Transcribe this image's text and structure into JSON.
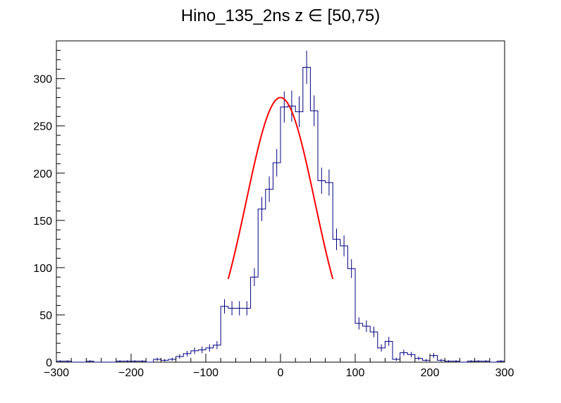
{
  "chart_data": {
    "type": "histogram",
    "title": "Hino_135_2ns z  ∈ [50,75)",
    "xlabel": "",
    "ylabel": "",
    "xlim": [
      -300,
      300
    ],
    "ylim": [
      0,
      340
    ],
    "x_ticks": [
      -300,
      -200,
      -100,
      0,
      100,
      200,
      300
    ],
    "x_tick_labels": [
      "−300",
      "−200",
      "−100",
      "0",
      "100",
      "200",
      "300"
    ],
    "y_ticks": [
      0,
      50,
      100,
      150,
      200,
      250,
      300
    ],
    "y_tick_labels": [
      "0",
      "50",
      "100",
      "150",
      "200",
      "250",
      "300"
    ],
    "grid": false,
    "bin_width": 10,
    "bin_edges_start": -300,
    "counts": [
      1,
      1,
      0,
      0,
      1,
      0,
      0,
      0,
      1,
      1,
      1,
      1,
      0,
      3,
      2,
      3,
      6,
      9,
      12,
      13,
      15,
      18,
      59,
      57,
      57,
      57,
      90,
      162,
      183,
      211,
      270,
      271,
      265,
      312,
      266,
      192,
      190,
      130,
      123,
      99,
      41,
      38,
      32,
      15,
      22,
      3,
      10,
      8,
      4,
      2,
      7,
      2,
      1,
      1,
      0,
      1,
      1,
      1,
      0,
      1
    ],
    "series": [
      {
        "name": "",
        "kind": "histogram",
        "color": "#000080"
      },
      {
        "name": "",
        "kind": "gaussian-fit",
        "color": "#ff0000",
        "amplitude": 280,
        "mean": 0,
        "sigma": 46,
        "x_range": [
          -70,
          70
        ]
      }
    ]
  }
}
